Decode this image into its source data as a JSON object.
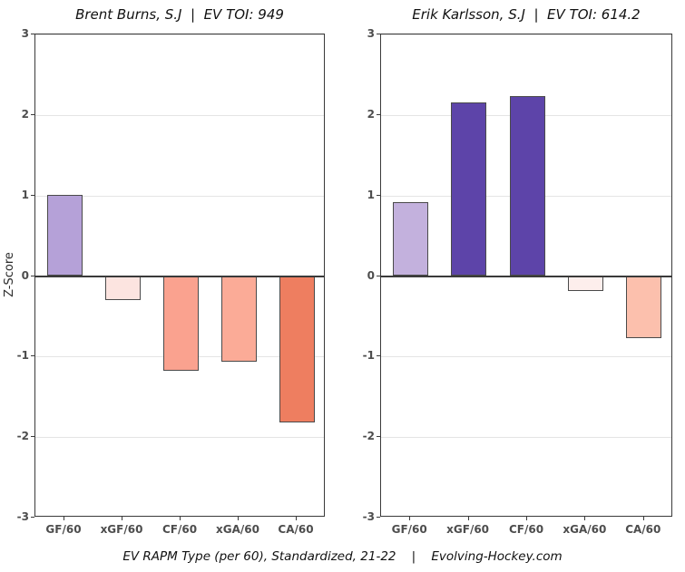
{
  "y_axis": {
    "label": "Z-Score",
    "ticks": [
      3,
      2,
      1,
      0,
      -1,
      -2,
      -3
    ],
    "max": 3,
    "min": -3
  },
  "caption": "EV RAPM Type (per 60), Standardized, 21-22    |    Evolving-Hockey.com",
  "colors": {
    "background": "#ffffff",
    "grid_line": "#e4e4e4",
    "zero_line": "#3a3a3a",
    "panel_border": "#3a3a3a",
    "bar_border": "#4a4a4a",
    "axis_text": "#4d4d4d",
    "title_text": "#111111"
  },
  "chart_data": [
    {
      "type": "bar",
      "title": "Brent Burns, S.J  |  EV TOI: 949",
      "categories": [
        "GF/60",
        "xGF/60",
        "CF/60",
        "xGA/60",
        "CA/60"
      ],
      "values": [
        1.01,
        -0.3,
        -1.18,
        -1.06,
        -1.82
      ],
      "bar_colors": [
        "#b5a1d8",
        "#fce4e0",
        "#faa28f",
        "#fbab97",
        "#ee7e60"
      ],
      "xlabel": "",
      "ylabel": "Z-Score",
      "ylim": [
        -3,
        3
      ],
      "yticks": [
        3,
        2,
        1,
        0,
        -1,
        -2,
        -3
      ],
      "grid": true,
      "legend": "none"
    },
    {
      "type": "bar",
      "title": "Erik Karlsson, S.J  |  EV TOI: 614.2",
      "categories": [
        "GF/60",
        "xGF/60",
        "CF/60",
        "xGA/60",
        "CA/60"
      ],
      "values": [
        0.92,
        2.16,
        2.24,
        -0.19,
        -0.77
      ],
      "bar_colors": [
        "#c3b1dd",
        "#5d44a9",
        "#5d44a9",
        "#fdeeec",
        "#fcc0ad"
      ],
      "xlabel": "",
      "ylabel": "Z-Score",
      "ylim": [
        -3,
        3
      ],
      "yticks": [
        3,
        2,
        1,
        0,
        -1,
        -2,
        -3
      ],
      "grid": true,
      "legend": "none"
    }
  ]
}
